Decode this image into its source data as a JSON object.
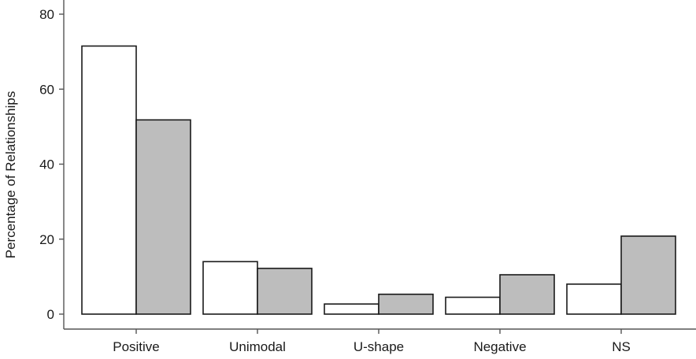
{
  "chart_data": {
    "type": "bar",
    "categories": [
      "Positive",
      "Unimodal",
      "U-shape",
      "Negative",
      "NS"
    ],
    "series": [
      {
        "values": [
          71.5,
          14,
          2.7,
          4.5,
          8
        ],
        "color": "#ffffff"
      },
      {
        "values": [
          51.8,
          12.2,
          5.3,
          10.5,
          20.8
        ],
        "color": "#bdbdbd"
      }
    ],
    "ylabel": "Percentage of Relationships",
    "xlabel": "",
    "ylim": [
      0,
      80
    ],
    "yticks": [
      0,
      20,
      40,
      60,
      80
    ],
    "grid": false,
    "legend": "none"
  }
}
